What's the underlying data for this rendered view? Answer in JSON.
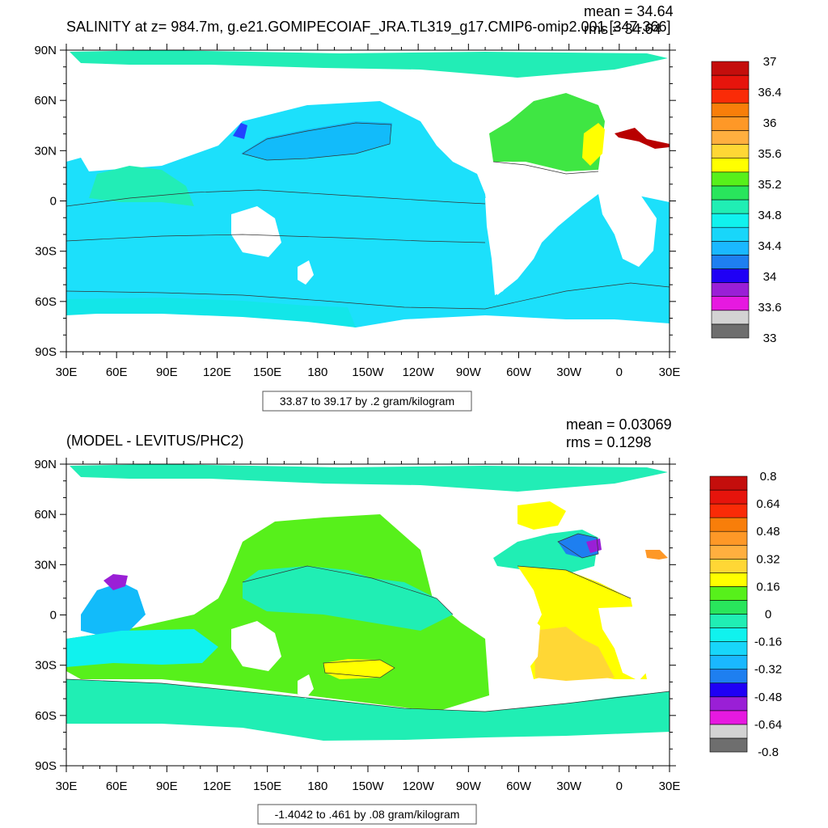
{
  "chart_data": [
    {
      "type": "heatmap",
      "title": "SALINITY at z= 984.7m, g.e21.GOMIPECOIAF_JRA.TL319_g17.CMIP6-omip2.001 [347-366]",
      "stats": [
        "mean = 34.64",
        "rms = 34.64"
      ],
      "x_ticks": [
        "30E",
        "60E",
        "90E",
        "120E",
        "150E",
        "180",
        "150W",
        "120W",
        "90W",
        "60W",
        "30W",
        "0",
        "30E"
      ],
      "y_ticks": [
        "90N",
        "60N",
        "30N",
        "0",
        "30S",
        "60S",
        "90S"
      ],
      "xlim": [
        30,
        390
      ],
      "ylim": [
        -90,
        90
      ],
      "contour_info": "33.87 to 39.17 by .2 gram/kilogram",
      "colorbar": {
        "colors": [
          "#6e6e6e",
          "#d3d3d3",
          "#e619e0",
          "#9a1fd6",
          "#1f00f5",
          "#1e7ff0",
          "#1ab8ff",
          "#18d6fa",
          "#10f2ee",
          "#20eeb4",
          "#29e55c",
          "#57f01b",
          "#ffff00",
          "#ffd735",
          "#ffaf3f",
          "#fe9827",
          "#f87e0a",
          "#fa2b07",
          "#e6140c",
          "#c40e0c"
        ],
        "labels": [
          "33",
          "33.6",
          "34",
          "34.4",
          "34.8",
          "35.2",
          "35.6",
          "36",
          "36.4",
          "37"
        ]
      }
    },
    {
      "type": "heatmap",
      "title": "(MODEL - LEVITUS/PHC2)",
      "stats": [
        "mean = 0.03069",
        "rms = 0.1298"
      ],
      "x_ticks": [
        "30E",
        "60E",
        "90E",
        "120E",
        "150E",
        "180",
        "150W",
        "120W",
        "90W",
        "60W",
        "30W",
        "0",
        "30E"
      ],
      "y_ticks": [
        "90N",
        "60N",
        "30N",
        "0",
        "30S",
        "60S",
        "90S"
      ],
      "xlim": [
        30,
        390
      ],
      "ylim": [
        -90,
        90
      ],
      "contour_info": "-1.4042 to .461 by .08 gram/kilogram",
      "colorbar": {
        "colors": [
          "#6e6e6e",
          "#d3d3d3",
          "#e619e0",
          "#9a1fd6",
          "#1f00f5",
          "#1e7ff0",
          "#1ab8ff",
          "#18d6fa",
          "#10f2ee",
          "#20eeb4",
          "#29e55c",
          "#57f01b",
          "#ffff00",
          "#ffd735",
          "#ffaf3f",
          "#fe9827",
          "#f87e0a",
          "#fa2b07",
          "#e6140c",
          "#c40e0c"
        ],
        "labels": [
          "-0.8",
          "-0.64",
          "-0.48",
          "-0.32",
          "-0.16",
          "0",
          "0.16",
          "0.32",
          "0.48",
          "0.64",
          "0.8"
        ]
      }
    }
  ]
}
